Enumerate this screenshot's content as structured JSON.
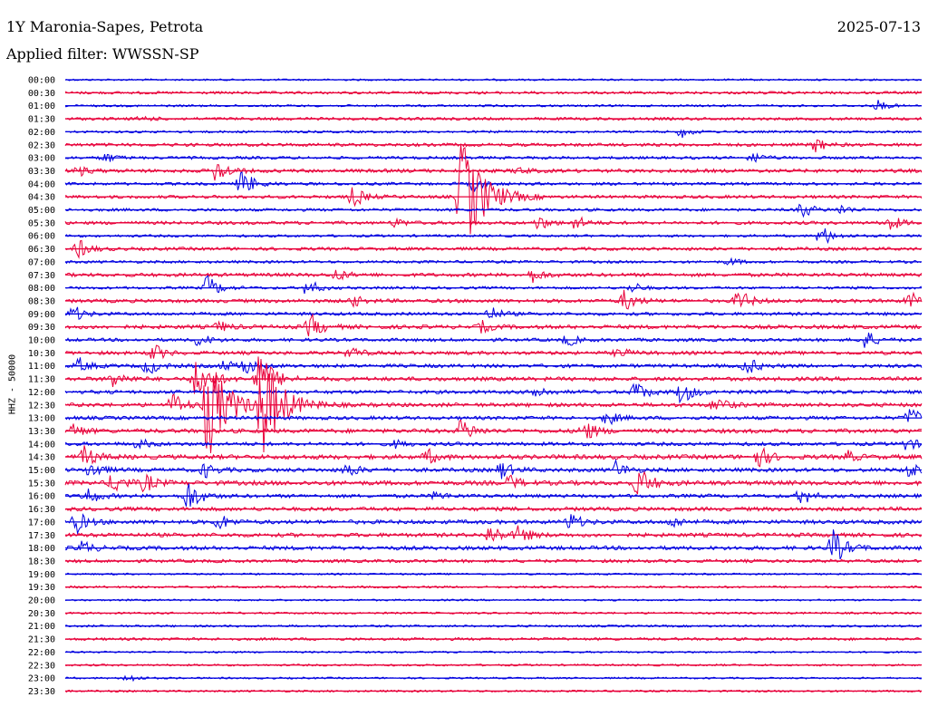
{
  "header": {
    "station": "1Y Maronia-Sapes, Petrota",
    "filter": "Applied filter: WWSSN-SP",
    "date": "2025-07-13"
  },
  "side_label": "HHZ - 50000",
  "colors": {
    "blue": "#0000e0",
    "red": "#e8003a"
  },
  "chart_data": {
    "type": "helicorder",
    "title": "1Y Maronia-Sapes, Petrota",
    "channel": "HHZ - 50000",
    "filter": "WWSSN-SP",
    "date": "2025-07-13",
    "row_minutes": 30,
    "rows": [
      "00:00",
      "00:30",
      "01:00",
      "01:30",
      "02:00",
      "02:30",
      "03:00",
      "03:30",
      "04:00",
      "04:30",
      "05:00",
      "05:30",
      "06:00",
      "06:30",
      "07:00",
      "07:30",
      "08:00",
      "08:30",
      "09:00",
      "09:30",
      "10:00",
      "10:30",
      "11:00",
      "11:30",
      "12:00",
      "12:30",
      "13:00",
      "13:30",
      "14:00",
      "14:30",
      "15:00",
      "15:30",
      "16:00",
      "16:30",
      "17:00",
      "17:30",
      "18:00",
      "18:30",
      "19:00",
      "19:30",
      "20:00",
      "20:30",
      "21:00",
      "21:30",
      "22:00",
      "22:30",
      "23:00",
      "23:30"
    ],
    "row_noise": [
      1,
      1.5,
      1.2,
      1.6,
      1.3,
      1.8,
      1.6,
      2,
      1.6,
      1.8,
      1.6,
      1.8,
      1.4,
      1.8,
      1.5,
      2,
      1.5,
      2,
      1.8,
      2.2,
      1.8,
      2,
      2,
      2.2,
      2,
      2.2,
      2,
      2.3,
      2,
      2.5,
      2.2,
      2.5,
      2,
      2.2,
      2.2,
      2.2,
      2.2,
      1.8,
      1,
      1.2,
      1,
      1.1,
      1.2,
      1.5,
      1,
      1.1,
      1,
      1.1
    ],
    "events": [
      {
        "row": "01:00",
        "minute": 28.5,
        "amplitude": 6
      },
      {
        "row": "01:30",
        "minute": 2.7,
        "amplitude": 3
      },
      {
        "row": "02:00",
        "minute": 21.6,
        "amplitude": 6
      },
      {
        "row": "02:30",
        "minute": 26.3,
        "amplitude": 8
      },
      {
        "row": "03:00",
        "minute": 1.4,
        "amplitude": 6
      },
      {
        "row": "03:00",
        "minute": 24.1,
        "amplitude": 6
      },
      {
        "row": "03:30",
        "minute": 0.5,
        "amplitude": 5
      },
      {
        "row": "03:30",
        "minute": 5.3,
        "amplitude": 14
      },
      {
        "row": "03:30",
        "minute": 15.9,
        "amplitude": 4
      },
      {
        "row": "04:00",
        "minute": 6.2,
        "amplitude": 16
      },
      {
        "row": "04:00",
        "minute": 14.3,
        "amplitude": 8
      },
      {
        "row": "04:30",
        "minute": 10.1,
        "amplitude": 12
      },
      {
        "row": "04:30",
        "minute": 13.9,
        "amplitude": 70
      },
      {
        "row": "05:00",
        "minute": 25.8,
        "amplitude": 10
      },
      {
        "row": "05:00",
        "minute": 27.2,
        "amplitude": 5
      },
      {
        "row": "05:30",
        "minute": 11.6,
        "amplitude": 5
      },
      {
        "row": "05:30",
        "minute": 16.6,
        "amplitude": 8
      },
      {
        "row": "05:30",
        "minute": 17.9,
        "amplitude": 8
      },
      {
        "row": "05:30",
        "minute": 28.9,
        "amplitude": 9
      },
      {
        "row": "06:00",
        "minute": 26.5,
        "amplitude": 12
      },
      {
        "row": "06:30",
        "minute": 0.5,
        "amplitude": 10
      },
      {
        "row": "07:00",
        "minute": 23.3,
        "amplitude": 4
      },
      {
        "row": "07:30",
        "minute": 9.5,
        "amplitude": 7
      },
      {
        "row": "07:30",
        "minute": 16.4,
        "amplitude": 8
      },
      {
        "row": "08:00",
        "minute": 5.0,
        "amplitude": 14
      },
      {
        "row": "08:00",
        "minute": 8.5,
        "amplitude": 10
      },
      {
        "row": "08:00",
        "minute": 19.9,
        "amplitude": 6
      },
      {
        "row": "08:30",
        "minute": 10.1,
        "amplitude": 6
      },
      {
        "row": "08:30",
        "minute": 19.6,
        "amplitude": 12
      },
      {
        "row": "08:30",
        "minute": 23.6,
        "amplitude": 13
      },
      {
        "row": "08:30",
        "minute": 29.6,
        "amplitude": 10
      },
      {
        "row": "09:00",
        "minute": 0.3,
        "amplitude": 9
      },
      {
        "row": "09:00",
        "minute": 14.9,
        "amplitude": 8
      },
      {
        "row": "09:30",
        "minute": 5.4,
        "amplitude": 6
      },
      {
        "row": "09:30",
        "minute": 8.6,
        "amplitude": 14
      },
      {
        "row": "09:30",
        "minute": 14.6,
        "amplitude": 6
      },
      {
        "row": "10:00",
        "minute": 4.7,
        "amplitude": 8
      },
      {
        "row": "10:00",
        "minute": 17.6,
        "amplitude": 7
      },
      {
        "row": "10:00",
        "minute": 28.0,
        "amplitude": 12
      },
      {
        "row": "10:30",
        "minute": 3.1,
        "amplitude": 10
      },
      {
        "row": "10:30",
        "minute": 10.0,
        "amplitude": 7
      },
      {
        "row": "10:30",
        "minute": 19.4,
        "amplitude": 6
      },
      {
        "row": "11:00",
        "minute": 0.5,
        "amplitude": 8
      },
      {
        "row": "11:00",
        "minute": 2.9,
        "amplitude": 10
      },
      {
        "row": "11:00",
        "minute": 5.6,
        "amplitude": 6
      },
      {
        "row": "11:00",
        "minute": 6.3,
        "amplitude": 10
      },
      {
        "row": "11:00",
        "minute": 23.9,
        "amplitude": 10
      },
      {
        "row": "11:30",
        "minute": 1.7,
        "amplitude": 10
      },
      {
        "row": "11:30",
        "minute": 4.6,
        "amplitude": 25
      },
      {
        "row": "11:30",
        "minute": 6.8,
        "amplitude": 30
      },
      {
        "row": "12:00",
        "minute": 16.5,
        "amplitude": 8
      },
      {
        "row": "12:00",
        "minute": 20.0,
        "amplitude": 12
      },
      {
        "row": "12:00",
        "minute": 21.6,
        "amplitude": 14
      },
      {
        "row": "12:30",
        "minute": 3.8,
        "amplitude": 14
      },
      {
        "row": "12:30",
        "minute": 5.0,
        "amplitude": 60
      },
      {
        "row": "12:30",
        "minute": 6.9,
        "amplitude": 60
      },
      {
        "row": "12:30",
        "minute": 22.8,
        "amplitude": 10
      },
      {
        "row": "13:00",
        "minute": 19.0,
        "amplitude": 8
      },
      {
        "row": "13:00",
        "minute": 29.6,
        "amplitude": 12
      },
      {
        "row": "13:30",
        "minute": 0.3,
        "amplitude": 8
      },
      {
        "row": "13:30",
        "minute": 13.9,
        "amplitude": 14
      },
      {
        "row": "13:30",
        "minute": 18.2,
        "amplitude": 12
      },
      {
        "row": "14:00",
        "minute": 2.6,
        "amplitude": 6
      },
      {
        "row": "14:00",
        "minute": 11.6,
        "amplitude": 4
      },
      {
        "row": "14:00",
        "minute": 29.5,
        "amplitude": 7
      },
      {
        "row": "14:30",
        "minute": 0.7,
        "amplitude": 12
      },
      {
        "row": "14:30",
        "minute": 12.7,
        "amplitude": 8
      },
      {
        "row": "14:30",
        "minute": 24.3,
        "amplitude": 12
      },
      {
        "row": "14:30",
        "minute": 27.4,
        "amplitude": 6
      },
      {
        "row": "15:00",
        "minute": 0.9,
        "amplitude": 10
      },
      {
        "row": "15:00",
        "minute": 4.9,
        "amplitude": 8
      },
      {
        "row": "15:00",
        "minute": 9.9,
        "amplitude": 8
      },
      {
        "row": "15:00",
        "minute": 15.3,
        "amplitude": 10
      },
      {
        "row": "15:00",
        "minute": 19.3,
        "amplitude": 10
      },
      {
        "row": "15:00",
        "minute": 29.6,
        "amplitude": 10
      },
      {
        "row": "15:30",
        "minute": 1.7,
        "amplitude": 12
      },
      {
        "row": "15:30",
        "minute": 2.8,
        "amplitude": 10
      },
      {
        "row": "15:30",
        "minute": 15.6,
        "amplitude": 8
      },
      {
        "row": "15:30",
        "minute": 20.1,
        "amplitude": 18
      },
      {
        "row": "16:00",
        "minute": 0.8,
        "amplitude": 10
      },
      {
        "row": "16:00",
        "minute": 4.3,
        "amplitude": 18
      },
      {
        "row": "16:00",
        "minute": 13.0,
        "amplitude": 5
      },
      {
        "row": "16:00",
        "minute": 25.8,
        "amplitude": 10
      },
      {
        "row": "17:00",
        "minute": 0.4,
        "amplitude": 12
      },
      {
        "row": "17:00",
        "minute": 5.4,
        "amplitude": 9
      },
      {
        "row": "17:00",
        "minute": 17.7,
        "amplitude": 10
      },
      {
        "row": "17:00",
        "minute": 21.3,
        "amplitude": 6
      },
      {
        "row": "17:30",
        "minute": 14.9,
        "amplitude": 12
      },
      {
        "row": "17:30",
        "minute": 15.9,
        "amplitude": 10
      },
      {
        "row": "18:00",
        "minute": 0.6,
        "amplitude": 8
      },
      {
        "row": "18:00",
        "minute": 26.9,
        "amplitude": 20
      },
      {
        "row": "23:00",
        "minute": 2.2,
        "amplitude": 5
      }
    ]
  }
}
